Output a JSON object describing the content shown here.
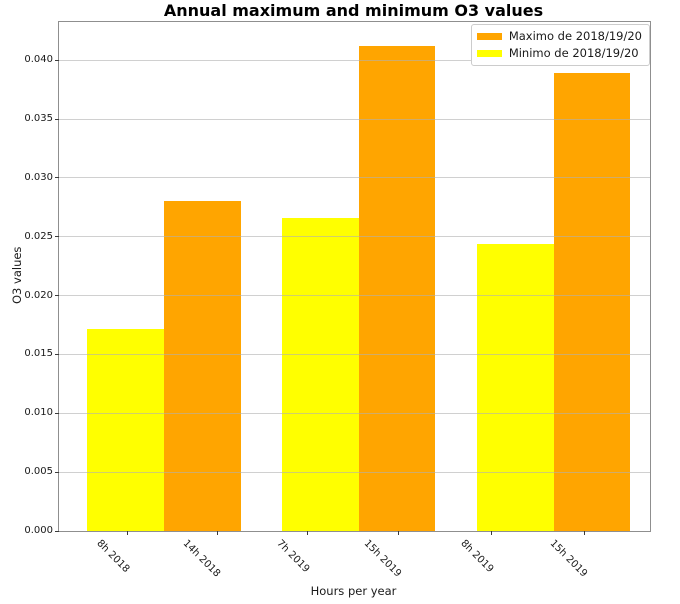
{
  "figure": {
    "title": "Annual maximum and minimum O3 values"
  },
  "chart_data": {
    "type": "bar",
    "title": "Annual maximum and minimum O3 values",
    "xlabel": "Hours per year",
    "ylabel": "O3 values",
    "categories": [
      "8h 2018",
      "14h 2018",
      "7h 2019",
      "15h 2019",
      "8h 2019",
      "15h 2019"
    ],
    "series": [
      {
        "name": "Maximo de 2018/19/20",
        "color": "#FFA500",
        "values": [
          null,
          0.028,
          null,
          0.0412,
          null,
          0.0389
        ]
      },
      {
        "name": "Minimo de 2018/19/20",
        "color": "#FFFF00",
        "values": [
          0.0172,
          null,
          0.0266,
          null,
          0.0244,
          null
        ]
      }
    ],
    "bars": [
      {
        "label": "8h 2018",
        "value": 0.0172,
        "series": "Minimo de 2018/19/20",
        "color": "#FFFF00"
      },
      {
        "label": "14h 2018",
        "value": 0.028,
        "series": "Maximo de 2018/19/20",
        "color": "#FFA500"
      },
      {
        "label": "7h 2019",
        "value": 0.0266,
        "series": "Minimo de 2018/19/20",
        "color": "#FFFF00"
      },
      {
        "label": "15h 2019",
        "value": 0.0412,
        "series": "Maximo de 2018/19/20",
        "color": "#FFA500"
      },
      {
        "label": "8h 2019",
        "value": 0.0244,
        "series": "Minimo de 2018/19/20",
        "color": "#FFFF00"
      },
      {
        "label": "15h 2019",
        "value": 0.0389,
        "series": "Maximo de 2018/19/20",
        "color": "#FFA500"
      }
    ],
    "ylim": [
      0,
      0.04325
    ],
    "yticks": [
      0.0,
      0.005,
      0.01,
      0.015,
      0.02,
      0.025,
      0.03,
      0.035,
      0.04
    ],
    "ytick_decimals": 3,
    "grid": true,
    "grid_above_bars": true,
    "legend_position": "upper right",
    "layout": {
      "bar_lefts_pct": [
        4.74,
        17.74,
        37.7,
        50.7,
        70.7,
        83.7
      ],
      "bar_width_pct": 13.0,
      "xtick_pct": [
        11.56,
        26.78,
        42.0,
        57.3,
        73.1,
        88.9
      ]
    }
  },
  "legend": {
    "entries": [
      {
        "label": "Maximo de 2018/19/20",
        "color": "#FFA500"
      },
      {
        "label": "Minimo de 2018/19/20",
        "color": "#FFFF00"
      }
    ]
  }
}
